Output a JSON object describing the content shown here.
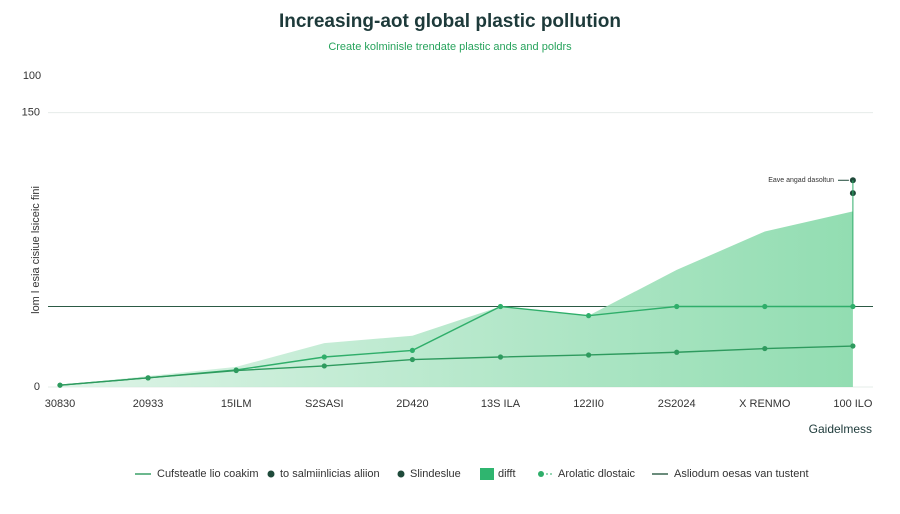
{
  "chart_data": {
    "type": "area",
    "title": "Increasing-aot global plastic pollution",
    "subtitle": "Create kolminisle trendate plastic ands and poldrs",
    "y_label": "lom l esia cisiue lsiceic fini",
    "y_top_label": "100",
    "side_label": "Gaidelmess",
    "categories": [
      "30830",
      "20933",
      "15ILM",
      "S2SASI",
      "2D420",
      "13S ILA",
      "122II0",
      "2S2024",
      "X RENMO",
      "100 ILO"
    ],
    "ylim": [
      0,
      170
    ],
    "yticks": [
      0,
      150
    ],
    "series": [
      {
        "name": "difft",
        "kind": "area",
        "color": "#2fb56f",
        "values": [
          1,
          6,
          11,
          24,
          28,
          44,
          39,
          64,
          85,
          96
        ]
      },
      {
        "name": "Arolatic dlostaic",
        "kind": "line",
        "color": "#2fae6a",
        "values": [
          1,
          5,
          9.3,
          16.4,
          20,
          44,
          39,
          44,
          44,
          44
        ]
      },
      {
        "name": "Cufsteatle lio coakim",
        "kind": "line",
        "color": "#2e9a5e",
        "values": [
          1,
          5,
          9,
          11.5,
          15,
          16.4,
          17.5,
          19,
          21,
          22.4
        ]
      },
      {
        "name": "to salmiinlicias aliion",
        "kind": "dot",
        "color": "#1f4a3a",
        "values": [
          null,
          null,
          null,
          null,
          null,
          null,
          null,
          null,
          null,
          106
        ]
      },
      {
        "name": "Slindeslue",
        "kind": "dot",
        "color": "#1f4a3a",
        "values": [
          null,
          null,
          null,
          null,
          null,
          null,
          null,
          null,
          null,
          113
        ]
      }
    ],
    "reference": {
      "name": "Asliodum oesas van tustent",
      "value": 44,
      "color": "#2c5a45"
    },
    "annotation": {
      "text": "Eave angad dasoltun",
      "value": 113
    }
  }
}
